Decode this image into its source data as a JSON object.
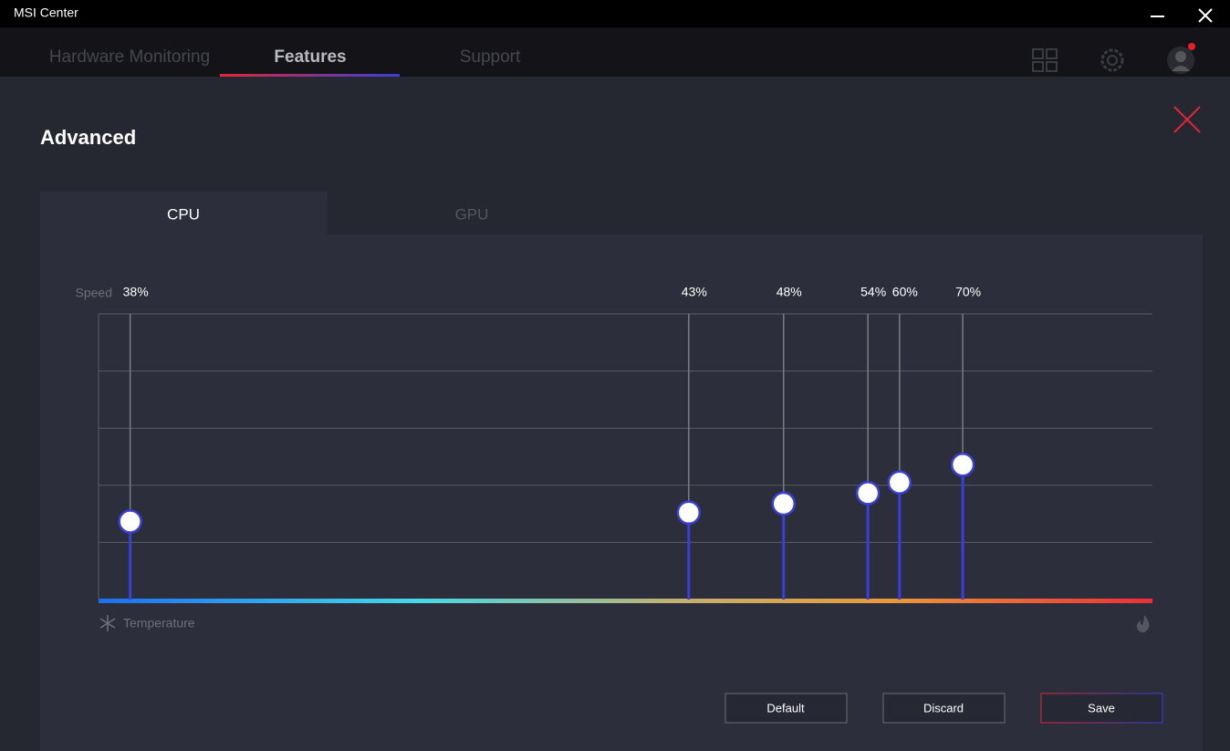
{
  "window": {
    "title": "MSI Center"
  },
  "nav": {
    "tabs": [
      "Hardware Monitoring",
      "Features",
      "Support"
    ]
  },
  "panel": {
    "title": "Advanced",
    "tabs": [
      "CPU",
      "GPU"
    ],
    "buttons": [
      "Default",
      "Discard",
      "Save"
    ]
  },
  "chart_data": {
    "type": "stem",
    "y_label": "Speed",
    "x_label": "Temperature",
    "x": [
      3,
      56,
      65,
      73,
      76,
      82
    ],
    "values": [
      38,
      43,
      48,
      54,
      60,
      70
    ],
    "value_labels": [
      "38%",
      "43%",
      "48%",
      "54%",
      "60%",
      "70%"
    ],
    "xlim": [
      0,
      100
    ],
    "ylim": [
      -6,
      155
    ],
    "color": "#3a3fd8",
    "grid": true
  }
}
